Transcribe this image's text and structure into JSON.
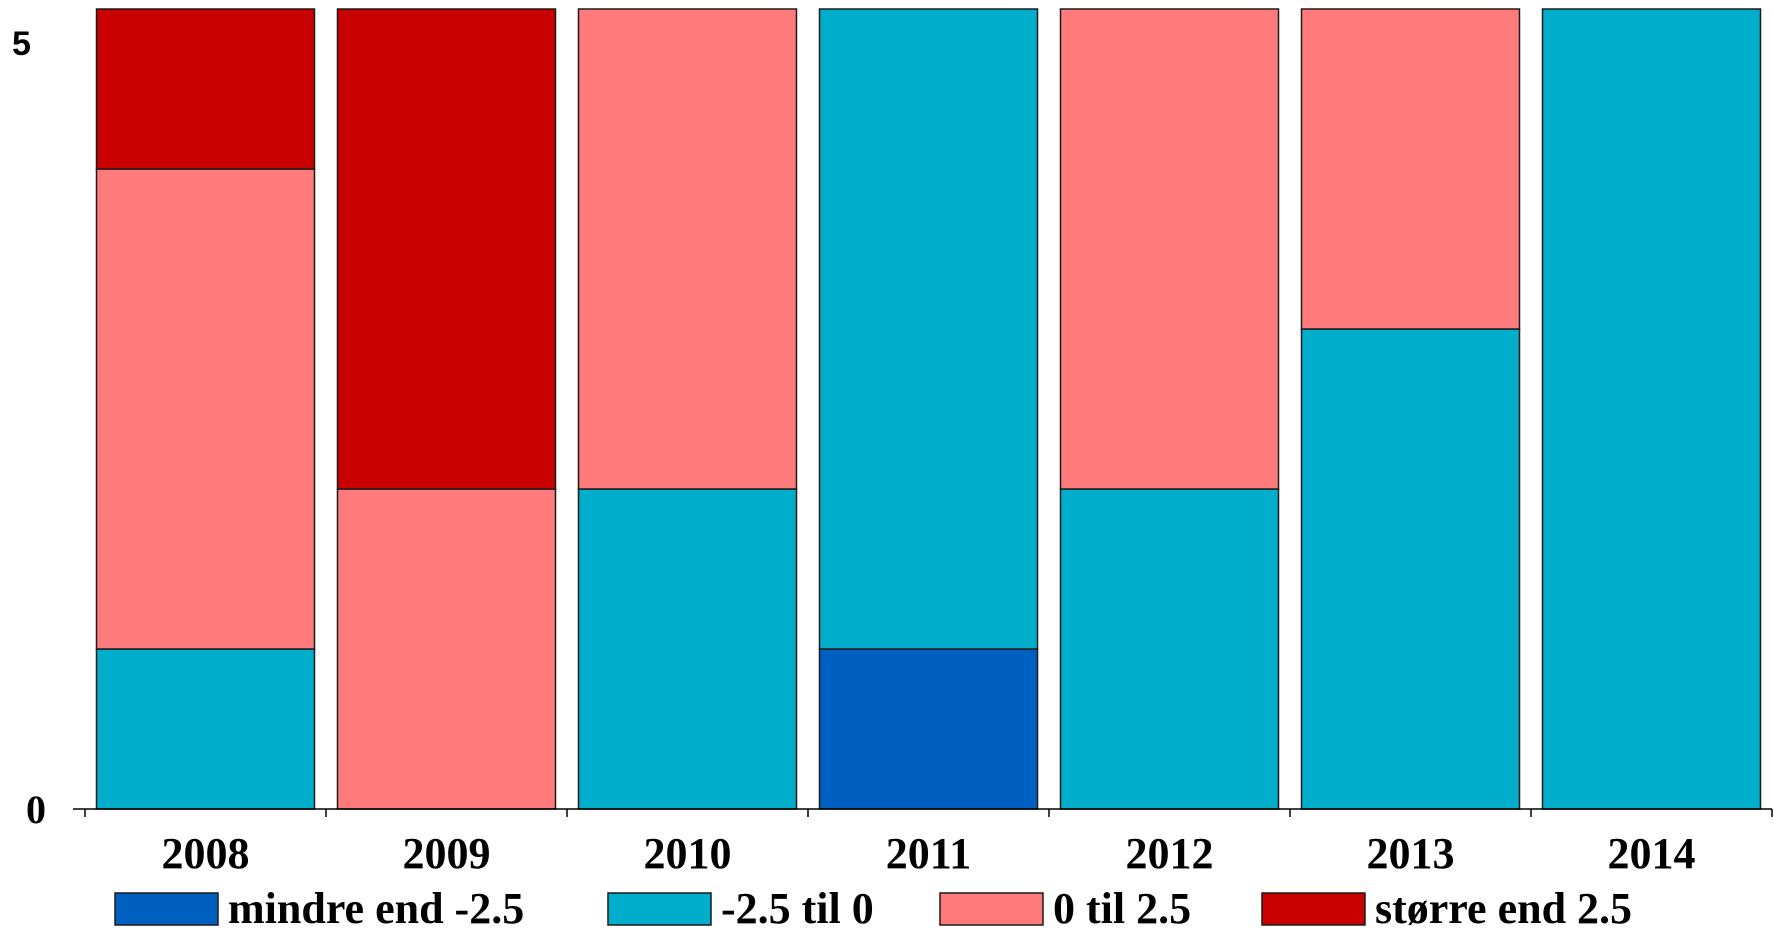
{
  "chart_data": {
    "type": "bar",
    "stacked": true,
    "categories": [
      "2008",
      "2009",
      "2010",
      "2011",
      "2012",
      "2013",
      "2014"
    ],
    "series": [
      {
        "name": "mindre end -2.5",
        "color": "#0060c0",
        "values": [
          0,
          0,
          0,
          1,
          0,
          0,
          0
        ]
      },
      {
        "name": "-2.5 til 0",
        "color": "#00aecc",
        "values": [
          1,
          0,
          2,
          4,
          2,
          3,
          5
        ]
      },
      {
        "name": "0 til 2.5",
        "color": "#ff7a7a",
        "values": [
          3,
          2,
          3,
          0,
          3,
          2,
          0
        ]
      },
      {
        "name": "større end 2.5",
        "color": "#c80000",
        "values": [
          1,
          3,
          0,
          0,
          0,
          0,
          0
        ]
      }
    ],
    "ylim": [
      0,
      5
    ],
    "yticks": [
      {
        "value": 5,
        "label": "5"
      },
      {
        "value": 0,
        "label": "0"
      }
    ],
    "title": "",
    "xlabel": "",
    "ylabel": "",
    "grid": false,
    "legend_position": "bottom"
  }
}
